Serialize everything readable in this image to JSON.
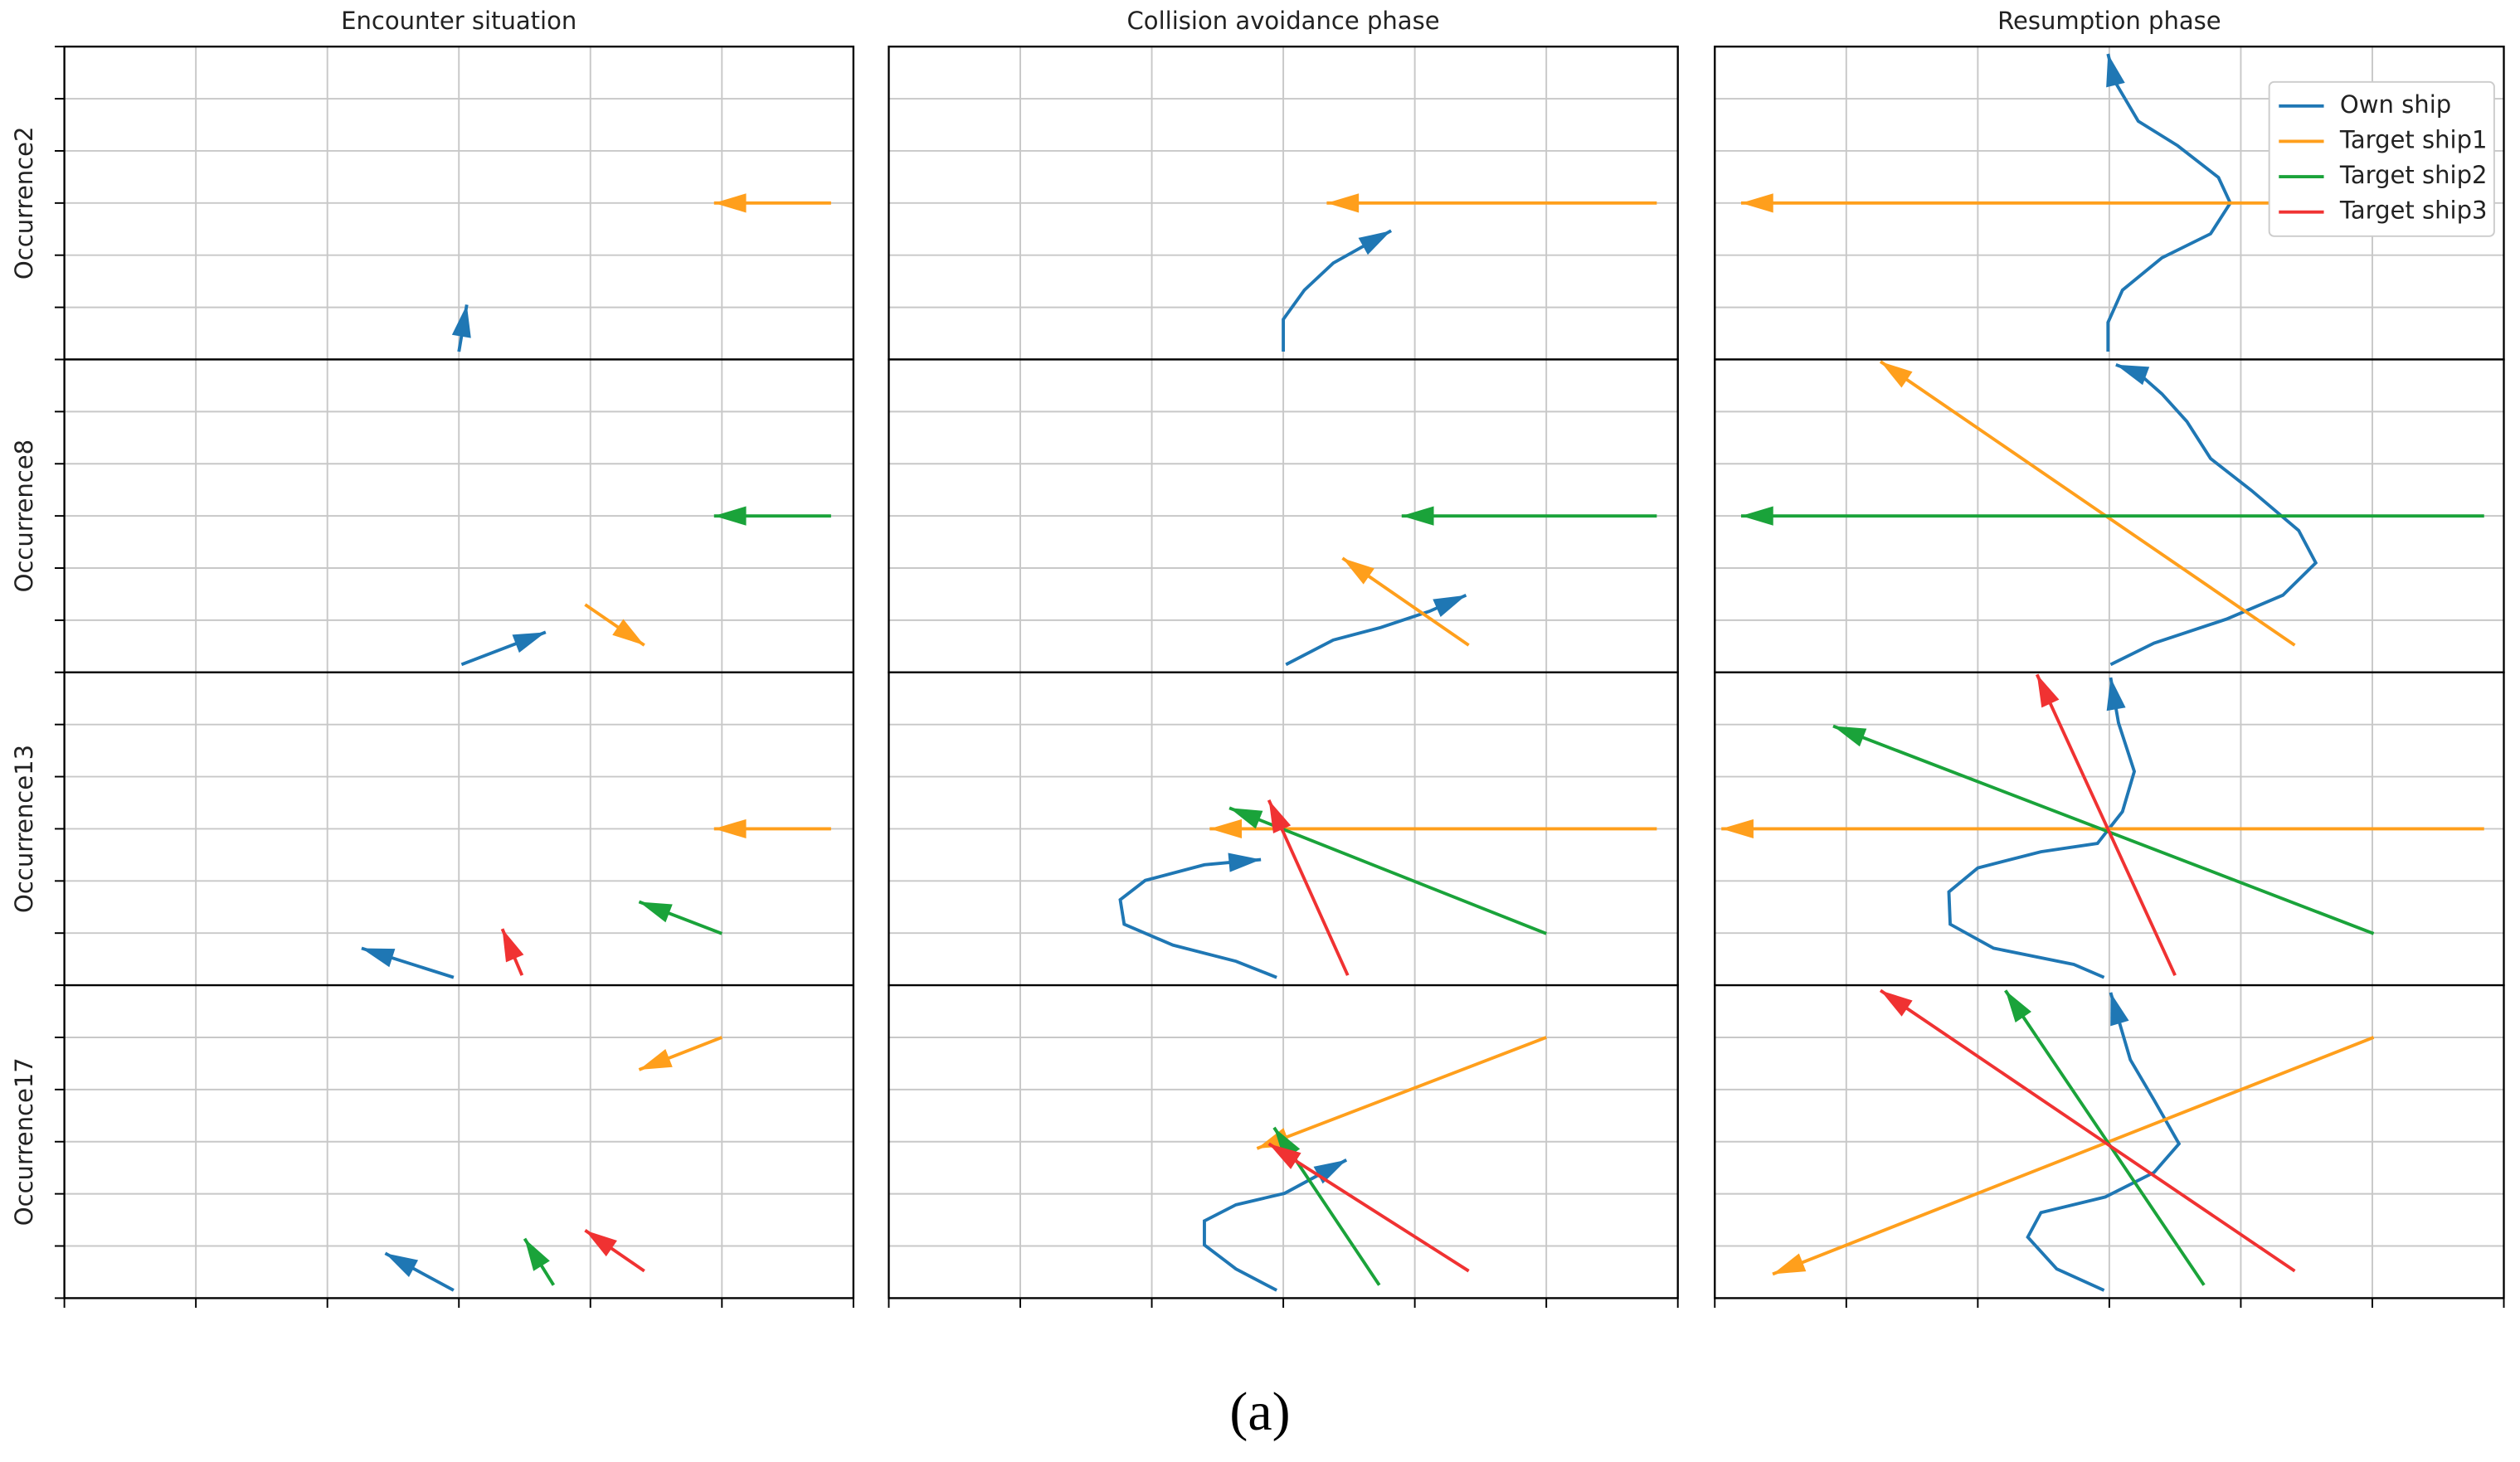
{
  "chart_data": [
    {
      "type": "line",
      "title": "Encounter situation",
      "ylabel": "Occurrence2",
      "xlim": [
        0,
        6
      ],
      "ylim": [
        0,
        6
      ],
      "xticks": [
        0,
        1,
        2,
        3,
        4,
        5,
        6
      ],
      "yticks": [
        0,
        1,
        2,
        3,
        4,
        5,
        6
      ],
      "grid": true,
      "series": [
        {
          "color": "#1f77b4",
          "x": [
            3,
            3.06
          ],
          "values": [
            0.15,
            1.05
          ]
        },
        {
          "color": "#ff9f1c",
          "x": [
            5.83,
            4.94
          ],
          "values": [
            3,
            3
          ]
        }
      ]
    },
    {
      "type": "line",
      "title": "Collision avoidance phase",
      "xlim": [
        0,
        6
      ],
      "ylim": [
        0,
        6
      ],
      "xticks": [
        0,
        1,
        2,
        3,
        4,
        5,
        6
      ],
      "yticks": [
        0,
        1,
        2,
        3,
        4,
        5,
        6
      ],
      "grid": true,
      "series": [
        {
          "color": "#1f77b4",
          "x": [
            3,
            3,
            3.16,
            3.38,
            3.82
          ],
          "values": [
            0.15,
            0.77,
            1.33,
            1.85,
            2.47
          ]
        },
        {
          "color": "#ff9f1c",
          "x": [
            5.84,
            3.33
          ],
          "values": [
            3,
            3
          ]
        }
      ]
    },
    {
      "type": "line",
      "title": "Resumption phase",
      "legend": "upper right",
      "xlim": [
        0,
        6
      ],
      "ylim": [
        0,
        6
      ],
      "xticks": [
        0,
        1,
        2,
        3,
        4,
        5,
        6
      ],
      "yticks": [
        0,
        1,
        2,
        3,
        4,
        5,
        6
      ],
      "grid": true,
      "series": [
        {
          "name": "Own ship",
          "color": "#1f77b4",
          "x": [
            2.99,
            2.99,
            3.1,
            3.4,
            3.77,
            3.92,
            3.83,
            3.52,
            3.22,
            3.04,
            2.99
          ],
          "values": [
            0.15,
            0.71,
            1.33,
            1.95,
            2.41,
            3,
            3.49,
            4.1,
            4.57,
            5.34,
            5.86
          ]
        },
        {
          "name": "Target ship1",
          "color": "#ff9f1c",
          "x": [
            4.32,
            0.2
          ],
          "values": [
            3,
            3
          ]
        },
        {
          "name": "Target ship2",
          "color": "#1aa33a"
        },
        {
          "name": "Target ship3",
          "color": "#f03232"
        }
      ]
    },
    {
      "type": "line",
      "ylabel": "Occurrence8",
      "xlim": [
        0,
        6
      ],
      "ylim": [
        0,
        6
      ],
      "xticks": [
        0,
        1,
        2,
        3,
        4,
        5,
        6
      ],
      "yticks": [
        0,
        1,
        2,
        3,
        4,
        5,
        6
      ],
      "grid": true,
      "series": [
        {
          "color": "#1f77b4",
          "x": [
            3.02,
            3.66
          ],
          "values": [
            0.15,
            0.77
          ]
        },
        {
          "color": "#ff9f1c",
          "x": [
            3.96,
            4.41
          ],
          "values": [
            1.3,
            0.52
          ]
        },
        {
          "color": "#1aa33a",
          "x": [
            5.83,
            4.94
          ],
          "values": [
            3,
            3
          ]
        }
      ]
    },
    {
      "type": "line",
      "xlim": [
        0,
        6
      ],
      "ylim": [
        0,
        6
      ],
      "xticks": [
        0,
        1,
        2,
        3,
        4,
        5,
        6
      ],
      "yticks": [
        0,
        1,
        2,
        3,
        4,
        5,
        6
      ],
      "grid": true,
      "series": [
        {
          "color": "#1f77b4",
          "x": [
            3.02,
            3.38,
            3.74,
            4.11,
            4.39
          ],
          "values": [
            0.15,
            0.62,
            0.86,
            1.17,
            1.48
          ]
        },
        {
          "color": "#ff9f1c",
          "x": [
            4.41,
            3.45
          ],
          "values": [
            0.52,
            2.19
          ]
        },
        {
          "color": "#1aa33a",
          "x": [
            5.84,
            3.9
          ],
          "values": [
            3,
            3
          ]
        }
      ]
    },
    {
      "type": "line",
      "xlim": [
        0,
        6
      ],
      "ylim": [
        0,
        6
      ],
      "xticks": [
        0,
        1,
        2,
        3,
        4,
        5,
        6
      ],
      "yticks": [
        0,
        1,
        2,
        3,
        4,
        5,
        6
      ],
      "grid": true,
      "series": [
        {
          "color": "#1f77b4",
          "x": [
            3.01,
            3.34,
            3.89,
            4.32,
            4.57,
            4.44,
            4.08,
            3.77,
            3.59,
            3.4,
            3.22,
            3.05
          ],
          "values": [
            0.15,
            0.56,
            1.02,
            1.48,
            2.1,
            2.72,
            3.49,
            4.1,
            4.81,
            5.34,
            5.74,
            5.9
          ]
        },
        {
          "color": "#ff9f1c",
          "x": [
            4.41,
            1.26
          ],
          "values": [
            0.52,
            5.96
          ]
        },
        {
          "color": "#1aa33a",
          "x": [
            5.85,
            0.2
          ],
          "values": [
            3,
            3
          ]
        }
      ]
    },
    {
      "type": "line",
      "ylabel": "Occurrence13",
      "xlim": [
        0,
        6
      ],
      "ylim": [
        0,
        6
      ],
      "xticks": [
        0,
        1,
        2,
        3,
        4,
        5,
        6
      ],
      "yticks": [
        0,
        1,
        2,
        3,
        4,
        5,
        6
      ],
      "grid": true,
      "series": [
        {
          "color": "#1f77b4",
          "x": [
            2.96,
            2.26
          ],
          "values": [
            0.15,
            0.71
          ]
        },
        {
          "color": "#f03232",
          "x": [
            3.48,
            3.33
          ],
          "values": [
            0.19,
            1.08
          ]
        },
        {
          "color": "#1aa33a",
          "x": [
            5,
            4.37
          ],
          "values": [
            0.99,
            1.6
          ]
        },
        {
          "color": "#ff9f1c",
          "x": [
            5.83,
            4.94
          ],
          "values": [
            3,
            3
          ]
        }
      ]
    },
    {
      "type": "line",
      "xlim": [
        0,
        6
      ],
      "ylim": [
        0,
        6
      ],
      "xticks": [
        0,
        1,
        2,
        3,
        4,
        5,
        6
      ],
      "yticks": [
        0,
        1,
        2,
        3,
        4,
        5,
        6
      ],
      "grid": true,
      "series": [
        {
          "color": "#1f77b4",
          "x": [
            2.95,
            2.64,
            2.16,
            1.79,
            1.76,
            1.95,
            2.4,
            2.83
          ],
          "values": [
            0.15,
            0.46,
            0.77,
            1.17,
            1.64,
            2.01,
            2.31,
            2.41
          ]
        },
        {
          "color": "#ff9f1c",
          "x": [
            5.84,
            2.44
          ],
          "values": [
            3,
            3
          ]
        },
        {
          "color": "#1aa33a",
          "x": [
            5,
            2.59
          ],
          "values": [
            0.99,
            3.4
          ]
        },
        {
          "color": "#f03232",
          "x": [
            3.49,
            2.89
          ],
          "values": [
            0.19,
            3.55
          ]
        }
      ]
    },
    {
      "type": "line",
      "xlim": [
        0,
        6
      ],
      "ylim": [
        0,
        6
      ],
      "xticks": [
        0,
        1,
        2,
        3,
        4,
        5,
        6
      ],
      "yticks": [
        0,
        1,
        2,
        3,
        4,
        5,
        6
      ],
      "grid": true,
      "series": [
        {
          "color": "#1f77b4",
          "x": [
            2.96,
            2.73,
            2.12,
            1.79,
            1.78,
            2,
            2.48,
            2.91,
            3.1,
            3.19,
            3.07,
            3.01
          ],
          "values": [
            0.15,
            0.4,
            0.71,
            1.17,
            1.79,
            2.25,
            2.56,
            2.72,
            3.33,
            4.1,
            5.03,
            5.9
          ]
        },
        {
          "color": "#ff9f1c",
          "x": [
            5.85,
            0.05
          ],
          "values": [
            3,
            3
          ]
        },
        {
          "color": "#1aa33a",
          "x": [
            5.01,
            0.9
          ],
          "values": [
            0.99,
            4.97
          ]
        },
        {
          "color": "#f03232",
          "x": [
            3.5,
            2.45
          ],
          "values": [
            0.19,
            5.96
          ]
        }
      ]
    },
    {
      "type": "line",
      "ylabel": "Occurrence17",
      "xlim": [
        0,
        6
      ],
      "ylim": [
        0,
        6
      ],
      "xticks": [
        0,
        1,
        2,
        3,
        4,
        5,
        6
      ],
      "yticks": [
        0,
        1,
        2,
        3,
        4,
        5,
        6
      ],
      "grid": true,
      "series": [
        {
          "color": "#1f77b4",
          "x": [
            2.96,
            2.44
          ],
          "values": [
            0.15,
            0.86
          ]
        },
        {
          "color": "#1aa33a",
          "x": [
            3.72,
            3.5
          ],
          "values": [
            0.25,
            1.14
          ]
        },
        {
          "color": "#f03232",
          "x": [
            4.41,
            3.96
          ],
          "values": [
            0.52,
            1.3
          ]
        },
        {
          "color": "#ff9f1c",
          "x": [
            5,
            4.37
          ],
          "values": [
            5,
            4.38
          ]
        }
      ]
    },
    {
      "type": "line",
      "xlim": [
        0,
        6
      ],
      "ylim": [
        0,
        6
      ],
      "xticks": [
        0,
        1,
        2,
        3,
        4,
        5,
        6
      ],
      "yticks": [
        0,
        1,
        2,
        3,
        4,
        5,
        6
      ],
      "grid": true,
      "series": [
        {
          "color": "#1f77b4",
          "x": [
            2.95,
            2.64,
            2.4,
            2.4,
            2.64,
            3.01,
            3.48
          ],
          "values": [
            0.15,
            0.56,
            1.02,
            1.48,
            1.79,
            2.01,
            2.65
          ]
        },
        {
          "color": "#ff9f1c",
          "x": [
            5,
            2.8
          ],
          "values": [
            5,
            2.87
          ]
        },
        {
          "color": "#1aa33a",
          "x": [
            3.73,
            2.93
          ],
          "values": [
            0.25,
            3.27
          ]
        },
        {
          "color": "#f03232",
          "x": [
            4.41,
            2.89
          ],
          "values": [
            0.52,
            2.96
          ]
        }
      ]
    },
    {
      "type": "line",
      "xlim": [
        0,
        6
      ],
      "ylim": [
        0,
        6
      ],
      "xticks": [
        0,
        1,
        2,
        3,
        4,
        5,
        6
      ],
      "yticks": [
        0,
        1,
        2,
        3,
        4,
        5,
        6
      ],
      "grid": true,
      "series": [
        {
          "color": "#1f77b4",
          "x": [
            2.96,
            2.6,
            2.38,
            2.48,
            2.97,
            3.34,
            3.53,
            3.34,
            3.16,
            3.01
          ],
          "values": [
            0.15,
            0.56,
            1.17,
            1.64,
            1.94,
            2.41,
            2.96,
            3.8,
            4.57,
            5.86
          ]
        },
        {
          "color": "#ff9f1c",
          "x": [
            5.01,
            0.44
          ],
          "values": [
            5,
            0.46
          ]
        },
        {
          "color": "#1aa33a",
          "x": [
            3.72,
            2.21
          ],
          "values": [
            0.25,
            5.9
          ]
        },
        {
          "color": "#f03232",
          "x": [
            4.41,
            1.26
          ],
          "values": [
            0.52,
            5.9
          ]
        }
      ]
    }
  ],
  "caption": "(a)"
}
